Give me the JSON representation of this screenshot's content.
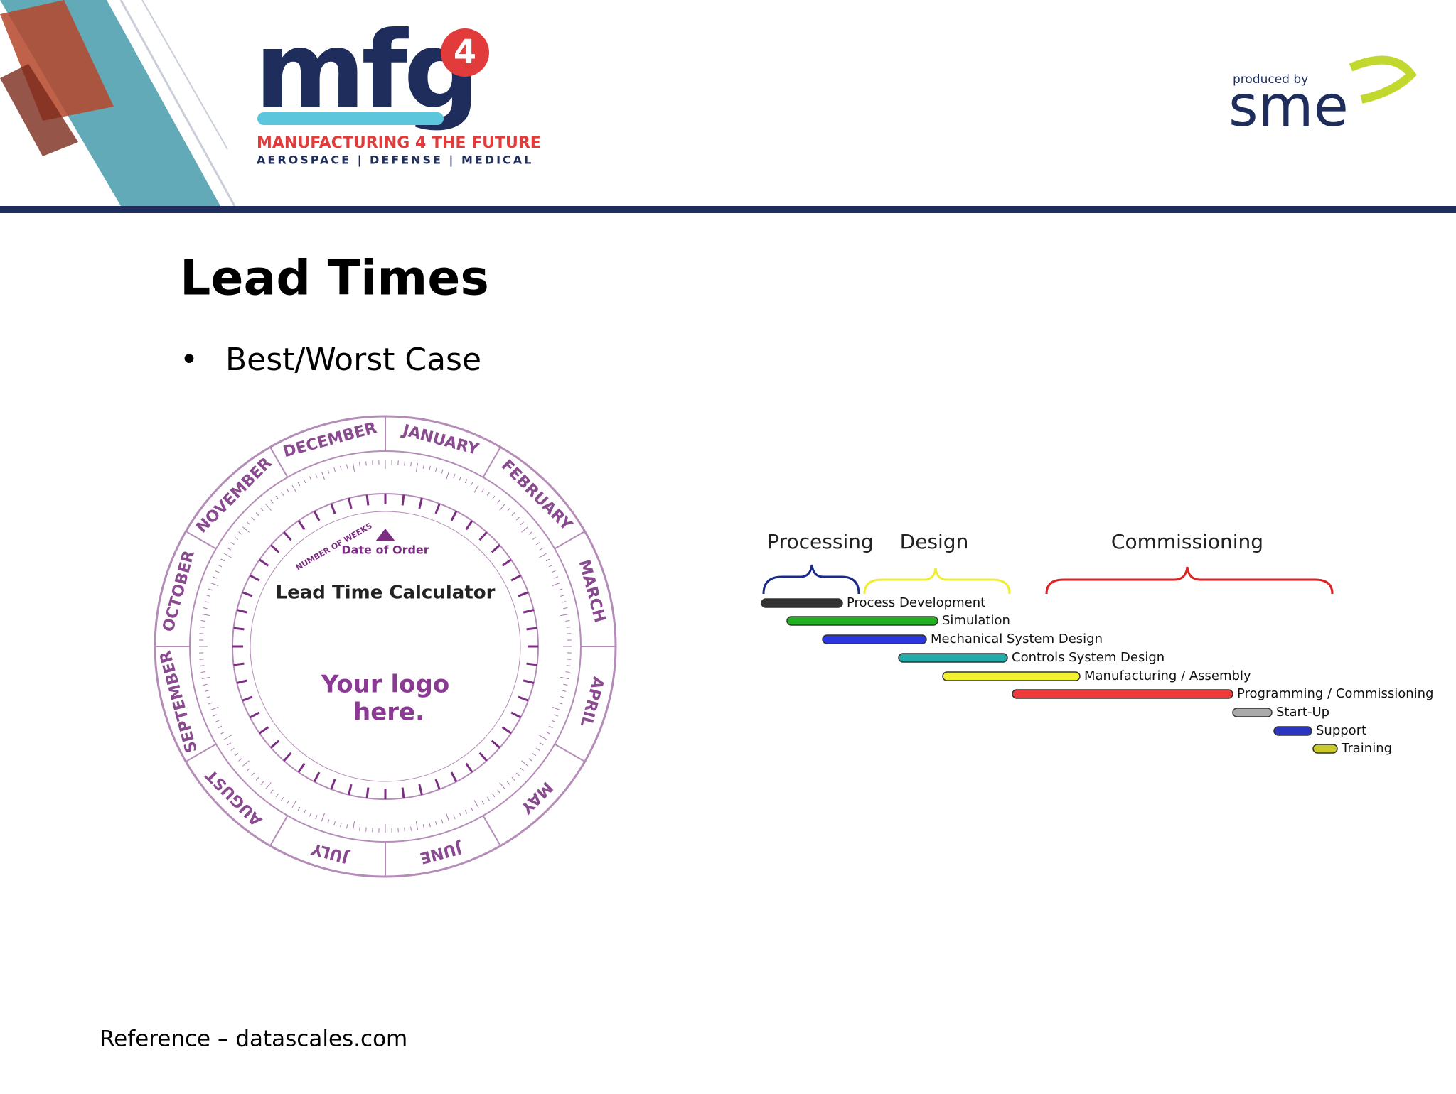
{
  "header": {
    "logo": {
      "brand": "mfg",
      "number": "4",
      "tagline": "MANUFACTURING 4 THE FUTURE",
      "sectors": "AEROSPACE | DEFENSE | MEDICAL"
    },
    "producer": {
      "caption": "produced by",
      "name": "sme"
    }
  },
  "slide": {
    "title": "Lead Times",
    "bullets": [
      "Best/Worst Case"
    ]
  },
  "calculator": {
    "months": [
      "JANUARY",
      "FEBRUARY",
      "MARCH",
      "APRIL",
      "MAY",
      "JUNE",
      "JULY",
      "AUGUST",
      "SEPTEMBER",
      "OCTOBER",
      "NOVEMBER",
      "DECEMBER"
    ],
    "title": "Lead Time Calculator",
    "marker": "Date of Order",
    "ring_label": "NUMBER OF WEEKS",
    "logo_line1": "Your logo",
    "logo_line2": "here."
  },
  "phases": [
    "Processing",
    "Design",
    "Commissioning"
  ],
  "tasks": [
    "Process Development",
    "Simulation",
    "Mechanical System Design",
    "Controls System Design",
    "Manufacturing / Assembly",
    "Programming / Commissioning",
    "Start-Up",
    "Support",
    "Training"
  ],
  "footer": {
    "reference": "Reference – datascales.com"
  }
}
